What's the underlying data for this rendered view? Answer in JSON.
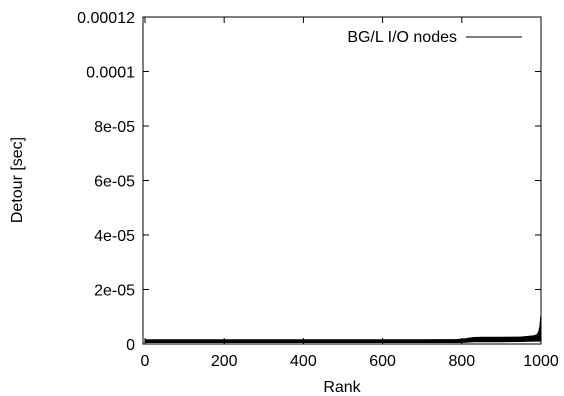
{
  "chart_data": {
    "type": "line",
    "title": "",
    "xlabel": "Rank",
    "ylabel": "Detour [sec]",
    "xlim": [
      -5,
      1000
    ],
    "ylim": [
      0,
      0.00012
    ],
    "x_ticks": [
      0,
      200,
      400,
      600,
      800,
      1000
    ],
    "x_tick_labels": [
      "0",
      "200",
      "400",
      "600",
      "800",
      "1000"
    ],
    "y_ticks": [
      0,
      2e-05,
      4e-05,
      6e-05,
      8e-05,
      0.0001,
      0.00012
    ],
    "y_tick_labels": [
      "0",
      "2e-05",
      "4e-05",
      "6e-05",
      "8e-05",
      "0.0001",
      "0.00012"
    ],
    "grid": false,
    "legend_position": "top-right",
    "series": [
      {
        "name": "BG/L I/O nodes",
        "color": "#000000",
        "x": [
          0,
          100,
          200,
          300,
          400,
          500,
          600,
          700,
          790,
          810,
          830,
          850,
          900,
          950,
          980,
          990,
          994,
          997,
          999
        ],
        "y_low": [
          5e-07,
          5e-07,
          5e-07,
          5e-07,
          5e-07,
          5e-07,
          5e-07,
          5e-07,
          5e-07,
          6e-07,
          8e-07,
          8e-07,
          8e-07,
          9e-07,
          1e-06,
          1e-06,
          1e-06,
          1e-06,
          1e-06
        ],
        "y_high": [
          1.6e-06,
          1.6e-06,
          1.6e-06,
          1.6e-06,
          1.6e-06,
          1.6e-06,
          1.6e-06,
          1.6e-06,
          1.7e-06,
          2e-06,
          2.4e-06,
          2.5e-06,
          2.5e-06,
          2.6e-06,
          3e-06,
          3.5e-06,
          4.5e-06,
          6.5e-06,
          1e-05
        ]
      }
    ]
  }
}
